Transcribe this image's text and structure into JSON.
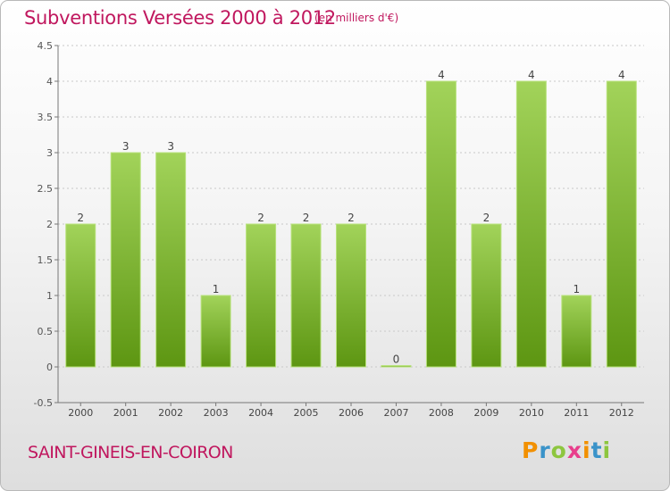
{
  "header": {
    "title": "Subventions Versées 2000 à 2012",
    "subtitle": "(en milliers d'€)"
  },
  "footer": {
    "commune": "SAINT-GINEIS-EN-COIRON",
    "brand": {
      "letters": [
        "P",
        "r",
        "o",
        "x",
        "i",
        "t",
        "i"
      ],
      "colors": [
        "#f29000",
        "#3a93c9",
        "#8dc63f",
        "#e83e8c",
        "#f29000",
        "#3a93c9",
        "#8dc63f"
      ]
    }
  },
  "colors": {
    "accent": "#c0175e",
    "bar_light": "#a2d35a",
    "bar_dark": "#5d9612",
    "grid": "#c8c8c8"
  },
  "chart_data": {
    "type": "bar",
    "title": "Subventions Versées 2000 à 2012",
    "subtitle": "(en milliers d'€)",
    "categories": [
      "2000",
      "2001",
      "2002",
      "2003",
      "2004",
      "2005",
      "2006",
      "2007",
      "2008",
      "2009",
      "2010",
      "2011",
      "2012"
    ],
    "values": [
      2,
      3,
      3,
      1,
      2,
      2,
      2,
      0,
      4,
      2,
      4,
      1,
      4
    ],
    "data_labels": [
      "2",
      "3",
      "3",
      "1",
      "2",
      "2",
      "2",
      "0",
      "4",
      "2",
      "4",
      "1",
      "4"
    ],
    "ylim": [
      -0.5,
      4.5
    ],
    "yticks": [
      -0.5,
      0,
      0.5,
      1,
      1.5,
      2,
      2.5,
      3,
      3.5,
      4,
      4.5
    ],
    "ytick_labels": [
      "-0.5",
      "0",
      "0.5",
      "1",
      "1.5",
      "2",
      "2.5",
      "3",
      "3.5",
      "4",
      "4.5"
    ],
    "grid": true
  }
}
